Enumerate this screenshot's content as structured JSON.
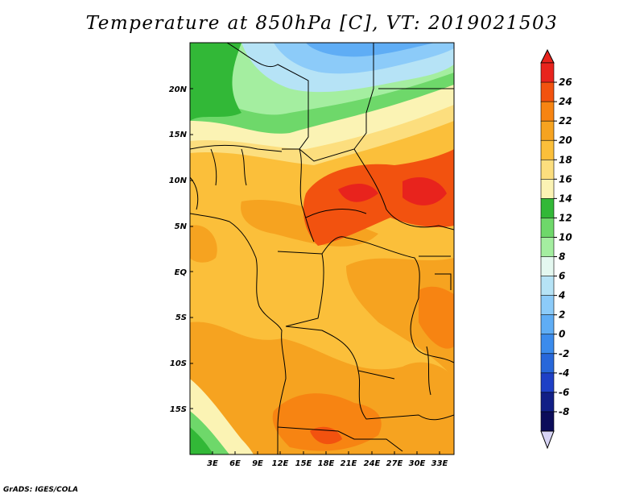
{
  "title": "Temperature at 850hPa [C], VT: 2019021503",
  "footer": "GrADS: IGES/COLA",
  "lat_labels": [
    "20N",
    "15N",
    "10N",
    "5N",
    "EQ",
    "5S",
    "10S",
    "15S"
  ],
  "lon_labels": [
    "3E",
    "6E",
    "9E",
    "12E",
    "15E",
    "18E",
    "21E",
    "24E",
    "27E",
    "30E",
    "33E"
  ],
  "colorbar": {
    "ticks": [
      "26",
      "24",
      "22",
      "20",
      "18",
      "16",
      "14",
      "12",
      "10",
      "8",
      "6",
      "4",
      "2",
      "0",
      "-2",
      "-4",
      "-6",
      "-8"
    ],
    "colors": [
      "#e8231d",
      "#f2520f",
      "#f78412",
      "#f6a320",
      "#fbbf3a",
      "#fcde7e",
      "#fbf3b4",
      "#32b837",
      "#6ed86a",
      "#a4eea0",
      "#e4f8f0",
      "#b6e3f6",
      "#8ccbf9",
      "#5fadf5",
      "#3b8bec",
      "#2767da",
      "#1e40c6",
      "#111f86",
      "#0b0c5a"
    ],
    "top_arrow_color": "#e8231d",
    "bottom_arrow_color": "#d7d4f5"
  }
}
